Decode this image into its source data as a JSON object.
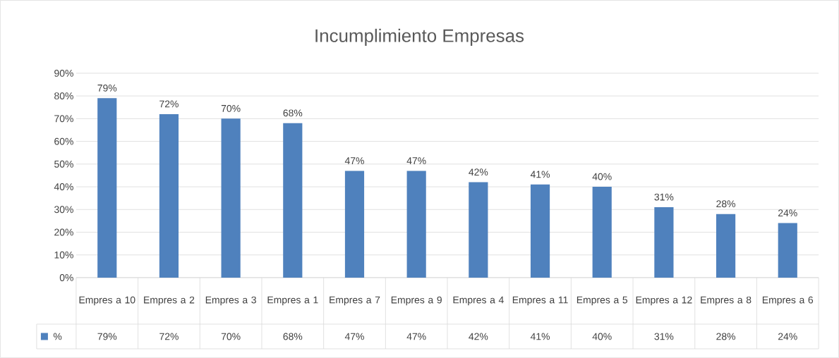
{
  "chart_data": {
    "type": "bar",
    "title": "Incumplimiento Empresas",
    "categories": [
      "Empres a 10",
      "Empres a 2",
      "Empres a 3",
      "Empres a 1",
      "Empres a 7",
      "Empres a 9",
      "Empres a 4",
      "Empres a 11",
      "Empres a 5",
      "Empres a 12",
      "Empres a 8",
      "Empres a 6"
    ],
    "series": [
      {
        "name": "%",
        "color": "#4f81bd",
        "values": [
          79,
          72,
          70,
          68,
          47,
          47,
          42,
          41,
          40,
          31,
          28,
          24
        ]
      }
    ],
    "value_labels": [
      "79%",
      "72%",
      "70%",
      "68%",
      "47%",
      "47%",
      "42%",
      "41%",
      "40%",
      "31%",
      "28%",
      "24%"
    ],
    "ylim": [
      0,
      90
    ],
    "yticks": [
      {
        "value": 0,
        "label": "0%"
      },
      {
        "value": 10,
        "label": "10%"
      },
      {
        "value": 20,
        "label": "20%"
      },
      {
        "value": 30,
        "label": "30%"
      },
      {
        "value": 40,
        "label": "40%"
      },
      {
        "value": 50,
        "label": "50%"
      },
      {
        "value": 60,
        "label": "60%"
      },
      {
        "value": 70,
        "label": "70%"
      },
      {
        "value": 80,
        "label": "80%"
      },
      {
        "value": 90,
        "label": "90%"
      }
    ],
    "grid": "y",
    "legend": "bottom"
  }
}
